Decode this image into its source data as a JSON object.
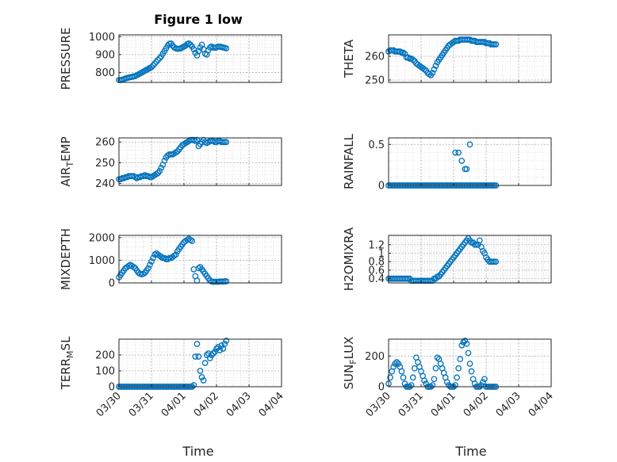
{
  "figure": {
    "title": "Figure 1 low",
    "x_ticks": [
      "03/30",
      "03/31",
      "04/01",
      "04/02",
      "04/03",
      "04/04"
    ],
    "x_label": "Time"
  },
  "colors": {
    "marker": "#0072BD",
    "grid": "#cfcfcf",
    "axis": "#262626"
  },
  "chart_data": [
    {
      "type": "scatter",
      "ylabel": "PRESSURE",
      "yticks": [
        800,
        900,
        1000
      ],
      "ylim": [
        745,
        1010
      ],
      "x": [
        0.0,
        0.05,
        0.1,
        0.15,
        0.2,
        0.25,
        0.3,
        0.35,
        0.4,
        0.45,
        0.5,
        0.55,
        0.6,
        0.65,
        0.7,
        0.75,
        0.8,
        0.85,
        0.9,
        0.95,
        1.0,
        1.05,
        1.1,
        1.15,
        1.2,
        1.25,
        1.3,
        1.35,
        1.4,
        1.45,
        1.5,
        1.55,
        1.6,
        1.65,
        1.7,
        1.75,
        1.8,
        1.85,
        1.9,
        1.95,
        2.0,
        2.05,
        2.1,
        2.15,
        2.2,
        2.25,
        2.3,
        2.35,
        2.4,
        2.45,
        2.5,
        2.55,
        2.6,
        2.65,
        2.7,
        2.75,
        2.8,
        2.85,
        2.9,
        2.95,
        3.0,
        3.05,
        3.1,
        3.15,
        3.2,
        3.25,
        3.3
      ],
      "y": [
        758,
        758,
        760,
        763,
        767,
        770,
        772,
        774,
        776,
        778,
        780,
        785,
        790,
        795,
        800,
        805,
        810,
        815,
        820,
        825,
        830,
        840,
        850,
        860,
        870,
        880,
        890,
        905,
        920,
        935,
        950,
        960,
        962,
        950,
        940,
        935,
        932,
        933,
        935,
        940,
        945,
        950,
        958,
        962,
        955,
        945,
        930,
        910,
        895,
        920,
        940,
        955,
        930,
        905,
        900,
        925,
        940,
        945,
        940,
        938,
        940,
        945,
        945,
        942,
        940,
        938,
        935
      ]
    },
    {
      "type": "scatter",
      "ylabel": "THETA",
      "yticks": [
        250,
        260
      ],
      "ylim": [
        249,
        269
      ],
      "x": [
        0.0,
        0.05,
        0.1,
        0.15,
        0.2,
        0.25,
        0.3,
        0.35,
        0.4,
        0.45,
        0.5,
        0.55,
        0.6,
        0.65,
        0.7,
        0.75,
        0.8,
        0.85,
        0.9,
        0.95,
        1.0,
        1.05,
        1.1,
        1.15,
        1.2,
        1.25,
        1.3,
        1.35,
        1.4,
        1.45,
        1.5,
        1.55,
        1.6,
        1.65,
        1.7,
        1.75,
        1.8,
        1.85,
        1.9,
        1.95,
        2.0,
        2.05,
        2.1,
        2.15,
        2.2,
        2.25,
        2.3,
        2.35,
        2.4,
        2.45,
        2.5,
        2.55,
        2.6,
        2.65,
        2.7,
        2.75,
        2.8,
        2.85,
        2.9,
        2.95,
        3.0,
        3.05,
        3.1,
        3.15,
        3.2,
        3.25,
        3.3
      ],
      "y": [
        262,
        262.5,
        262.5,
        262.5,
        262,
        262,
        262,
        262,
        261.5,
        261.5,
        261,
        259.5,
        259.5,
        259,
        259,
        258.5,
        258,
        257,
        256.5,
        256,
        255.5,
        255,
        254.5,
        254,
        253,
        252.5,
        252,
        253,
        254.5,
        256,
        257.5,
        258.5,
        259.5,
        260.5,
        261.5,
        262.5,
        263.5,
        264.5,
        265,
        265.5,
        266,
        266.5,
        266.5,
        266.5,
        267,
        267,
        267,
        267,
        267,
        267,
        267,
        266.5,
        266.5,
        266.5,
        266,
        266,
        266,
        266,
        266,
        266,
        265.5,
        265.5,
        265.5,
        265,
        265,
        265,
        265
      ]
    },
    {
      "type": "scatter",
      "ylabel": "AIR",
      "ylabel_sub": "T",
      "ylabel_suffix": "EMP",
      "yticks": [
        240,
        250,
        260
      ],
      "ylim": [
        239,
        262
      ],
      "x": [
        0.0,
        0.05,
        0.1,
        0.15,
        0.2,
        0.25,
        0.3,
        0.35,
        0.4,
        0.45,
        0.5,
        0.55,
        0.6,
        0.65,
        0.7,
        0.75,
        0.8,
        0.85,
        0.9,
        0.95,
        1.0,
        1.05,
        1.1,
        1.15,
        1.2,
        1.25,
        1.3,
        1.35,
        1.4,
        1.45,
        1.5,
        1.55,
        1.6,
        1.65,
        1.7,
        1.75,
        1.8,
        1.85,
        1.9,
        1.95,
        2.0,
        2.05,
        2.1,
        2.15,
        2.2,
        2.25,
        2.3,
        2.35,
        2.4,
        2.45,
        2.5,
        2.55,
        2.6,
        2.65,
        2.7,
        2.75,
        2.8,
        2.85,
        2.9,
        2.95,
        3.0,
        3.05,
        3.1,
        3.15,
        3.2,
        3.25,
        3.3
      ],
      "y": [
        242,
        242,
        242.5,
        242.5,
        243,
        243,
        243.5,
        243.5,
        243.5,
        243.5,
        243,
        242.5,
        243,
        243,
        243.5,
        243.5,
        244,
        243.5,
        243.5,
        243,
        243,
        243.5,
        244,
        244.5,
        245,
        246,
        247.5,
        249,
        251,
        252.5,
        253.5,
        254,
        254,
        254,
        254.5,
        255,
        255.5,
        256.5,
        257.5,
        258.5,
        259,
        259.5,
        260,
        260.5,
        261,
        261,
        261,
        260.5,
        261,
        258,
        259,
        260,
        261,
        260,
        259.5,
        260,
        260.5,
        260.5,
        260.5,
        260,
        260,
        260.5,
        260.5,
        260,
        260,
        260,
        260
      ]
    },
    {
      "type": "scatter",
      "ylabel": "RAINFALL",
      "yticks": [
        0,
        0.5
      ],
      "ylim": [
        0,
        0.58
      ],
      "x": [
        0.0,
        0.05,
        0.1,
        0.15,
        0.2,
        0.25,
        0.3,
        0.35,
        0.4,
        0.45,
        0.5,
        0.55,
        0.6,
        0.65,
        0.7,
        0.75,
        0.8,
        0.85,
        0.9,
        0.95,
        1.0,
        1.05,
        1.1,
        1.15,
        1.2,
        1.25,
        1.3,
        1.35,
        1.4,
        1.45,
        1.5,
        1.55,
        1.6,
        1.65,
        1.7,
        1.75,
        1.8,
        1.85,
        1.9,
        1.95,
        2.0,
        2.05,
        2.1,
        2.15,
        2.2,
        2.25,
        2.3,
        2.35,
        2.4,
        2.45,
        2.5,
        2.55,
        2.6,
        2.65,
        2.7,
        2.75,
        2.8,
        2.85,
        2.9,
        2.95,
        3.0,
        3.05,
        3.1,
        3.15,
        3.2,
        3.25,
        3.3,
        2.05,
        2.15,
        2.25,
        2.35,
        2.4,
        2.5
      ],
      "y": [
        0,
        0,
        0,
        0,
        0,
        0,
        0,
        0,
        0,
        0,
        0,
        0,
        0,
        0,
        0,
        0,
        0,
        0,
        0,
        0,
        0,
        0,
        0,
        0,
        0,
        0,
        0,
        0,
        0,
        0,
        0,
        0,
        0,
        0,
        0,
        0,
        0,
        0,
        0,
        0,
        0,
        0,
        0,
        0,
        0,
        0,
        0,
        0,
        0,
        0,
        0,
        0,
        0,
        0,
        0,
        0,
        0,
        0,
        0,
        0,
        0,
        0,
        0,
        0,
        0,
        0,
        0,
        0.4,
        0.4,
        0.3,
        0.2,
        0.2,
        0.5
      ]
    },
    {
      "type": "scatter",
      "ylabel": "MIXDEPTH",
      "yticks": [
        0,
        1000,
        2000
      ],
      "ylim": [
        0,
        2100
      ],
      "x": [
        0.0,
        0.05,
        0.1,
        0.15,
        0.2,
        0.25,
        0.3,
        0.35,
        0.4,
        0.45,
        0.5,
        0.55,
        0.6,
        0.65,
        0.7,
        0.75,
        0.8,
        0.85,
        0.9,
        0.95,
        1.0,
        1.05,
        1.1,
        1.15,
        1.2,
        1.25,
        1.3,
        1.35,
        1.4,
        1.45,
        1.5,
        1.55,
        1.6,
        1.65,
        1.7,
        1.75,
        1.8,
        1.85,
        1.9,
        1.95,
        2.0,
        2.05,
        2.1,
        2.15,
        2.2,
        2.25,
        2.3,
        2.35,
        2.4,
        2.45,
        2.5,
        2.55,
        2.6,
        2.65,
        2.7,
        2.75,
        2.8,
        2.85,
        2.9,
        2.95,
        3.0,
        3.05,
        3.1,
        3.15,
        3.2,
        3.25,
        3.3
      ],
      "y": [
        250,
        350,
        450,
        550,
        650,
        700,
        750,
        800,
        750,
        700,
        650,
        550,
        450,
        400,
        380,
        400,
        450,
        550,
        650,
        800,
        950,
        1100,
        1250,
        1300,
        1250,
        1200,
        1150,
        1100,
        1100,
        1050,
        1050,
        1100,
        1100,
        1150,
        1200,
        1250,
        1400,
        1500,
        1600,
        1700,
        1800,
        1850,
        1900,
        1950,
        1900,
        1850,
        600,
        300,
        100,
        650,
        700,
        600,
        500,
        400,
        300,
        200,
        100,
        60,
        50,
        50,
        50,
        50,
        60,
        60,
        60,
        70,
        70
      ]
    },
    {
      "type": "scatter",
      "ylabel": "H2OMIXRA",
      "yticks": [
        0.4,
        0.6,
        0.8,
        1.0,
        1.2
      ],
      "ytick_labels": [
        "0.4",
        "0.6",
        "0.8",
        "1",
        "1.2"
      ],
      "ylim": [
        0.3,
        1.42
      ],
      "x": [
        0.0,
        0.05,
        0.1,
        0.15,
        0.2,
        0.25,
        0.3,
        0.35,
        0.4,
        0.45,
        0.5,
        0.55,
        0.6,
        0.65,
        0.7,
        0.75,
        0.8,
        0.85,
        0.9,
        0.95,
        1.0,
        1.05,
        1.1,
        1.15,
        1.2,
        1.25,
        1.3,
        1.35,
        1.4,
        1.45,
        1.5,
        1.55,
        1.6,
        1.65,
        1.7,
        1.75,
        1.8,
        1.85,
        1.9,
        1.95,
        2.0,
        2.05,
        2.1,
        2.15,
        2.2,
        2.25,
        2.3,
        2.35,
        2.4,
        2.45,
        2.5,
        2.55,
        2.6,
        2.65,
        2.7,
        2.75,
        2.8,
        2.85,
        2.9,
        2.95,
        3.0,
        3.05,
        3.1,
        3.15,
        3.2,
        3.25,
        3.3
      ],
      "y": [
        0.4,
        0.4,
        0.4,
        0.4,
        0.4,
        0.4,
        0.4,
        0.4,
        0.4,
        0.4,
        0.4,
        0.4,
        0.4,
        0.4,
        0.35,
        0.35,
        0.35,
        0.35,
        0.35,
        0.35,
        0.35,
        0.35,
        0.35,
        0.35,
        0.35,
        0.35,
        0.35,
        0.35,
        0.4,
        0.4,
        0.45,
        0.45,
        0.5,
        0.55,
        0.6,
        0.65,
        0.7,
        0.75,
        0.8,
        0.85,
        0.9,
        0.95,
        1.0,
        1.05,
        1.1,
        1.15,
        1.2,
        1.25,
        1.3,
        1.35,
        1.3,
        1.25,
        1.25,
        1.2,
        1.2,
        1.2,
        1.3,
        1.15,
        1.05,
        1.0,
        0.9,
        0.85,
        0.8,
        0.8,
        0.8,
        0.8,
        0.8
      ]
    },
    {
      "type": "scatter",
      "ylabel": "TERR",
      "ylabel_sub": "M",
      "ylabel_suffix": "SL",
      "yticks": [
        0,
        100,
        200
      ],
      "ylim": [
        0,
        300
      ],
      "x": [
        0.0,
        0.05,
        0.1,
        0.15,
        0.2,
        0.25,
        0.3,
        0.35,
        0.4,
        0.45,
        0.5,
        0.55,
        0.6,
        0.65,
        0.7,
        0.75,
        0.8,
        0.85,
        0.9,
        0.95,
        1.0,
        1.05,
        1.1,
        1.15,
        1.2,
        1.25,
        1.3,
        1.35,
        1.4,
        1.45,
        1.5,
        1.55,
        1.6,
        1.65,
        1.7,
        1.75,
        1.8,
        1.85,
        1.9,
        1.95,
        2.0,
        2.05,
        2.1,
        2.15,
        2.2,
        2.25,
        2.3,
        2.35,
        2.4,
        2.45,
        2.5,
        2.55,
        2.6,
        2.65,
        2.7,
        2.75,
        2.8,
        2.85,
        2.9,
        2.95,
        3.0,
        3.05,
        3.1,
        3.15,
        3.2,
        3.25,
        3.3
      ],
      "y": [
        0,
        0,
        0,
        0,
        0,
        0,
        0,
        0,
        0,
        0,
        0,
        0,
        0,
        0,
        0,
        0,
        0,
        0,
        0,
        0,
        0,
        0,
        0,
        0,
        0,
        0,
        0,
        0,
        0,
        0,
        0,
        0,
        0,
        0,
        0,
        0,
        0,
        0,
        0,
        0,
        0,
        0,
        0,
        0,
        0,
        0,
        10,
        190,
        270,
        190,
        100,
        60,
        40,
        150,
        200,
        210,
        180,
        200,
        210,
        220,
        240,
        250,
        230,
        260,
        240,
        270,
        290
      ]
    },
    {
      "type": "scatter",
      "ylabel": "SUN",
      "ylabel_sub": "F",
      "ylabel_suffix": "LUX",
      "yticks": [
        0,
        200
      ],
      "ylim": [
        0,
        310
      ],
      "x": [
        0.0,
        0.05,
        0.1,
        0.15,
        0.2,
        0.25,
        0.3,
        0.35,
        0.4,
        0.45,
        0.5,
        0.55,
        0.6,
        0.65,
        0.7,
        0.75,
        0.8,
        0.85,
        0.9,
        0.95,
        1.0,
        1.05,
        1.1,
        1.15,
        1.2,
        1.25,
        1.3,
        1.35,
        1.4,
        1.45,
        1.5,
        1.55,
        1.6,
        1.65,
        1.7,
        1.75,
        1.8,
        1.85,
        1.9,
        1.95,
        2.0,
        2.05,
        2.1,
        2.15,
        2.2,
        2.25,
        2.3,
        2.35,
        2.4,
        2.45,
        2.5,
        2.55,
        2.6,
        2.65,
        2.7,
        2.75,
        2.8,
        2.85,
        2.9,
        2.95,
        3.0,
        3.05,
        3.1,
        3.15,
        3.2,
        3.25,
        3.3
      ],
      "y": [
        20,
        60,
        100,
        130,
        150,
        160,
        150,
        130,
        100,
        60,
        20,
        0,
        0,
        0,
        10,
        60,
        120,
        190,
        160,
        130,
        100,
        70,
        40,
        20,
        0,
        0,
        0,
        10,
        50,
        120,
        190,
        180,
        150,
        120,
        90,
        60,
        30,
        10,
        0,
        0,
        0,
        10,
        60,
        120,
        180,
        270,
        290,
        300,
        280,
        220,
        150,
        100,
        50,
        20,
        0,
        0,
        0,
        10,
        30,
        50,
        0,
        0,
        0,
        0,
        0,
        0,
        0
      ]
    }
  ]
}
